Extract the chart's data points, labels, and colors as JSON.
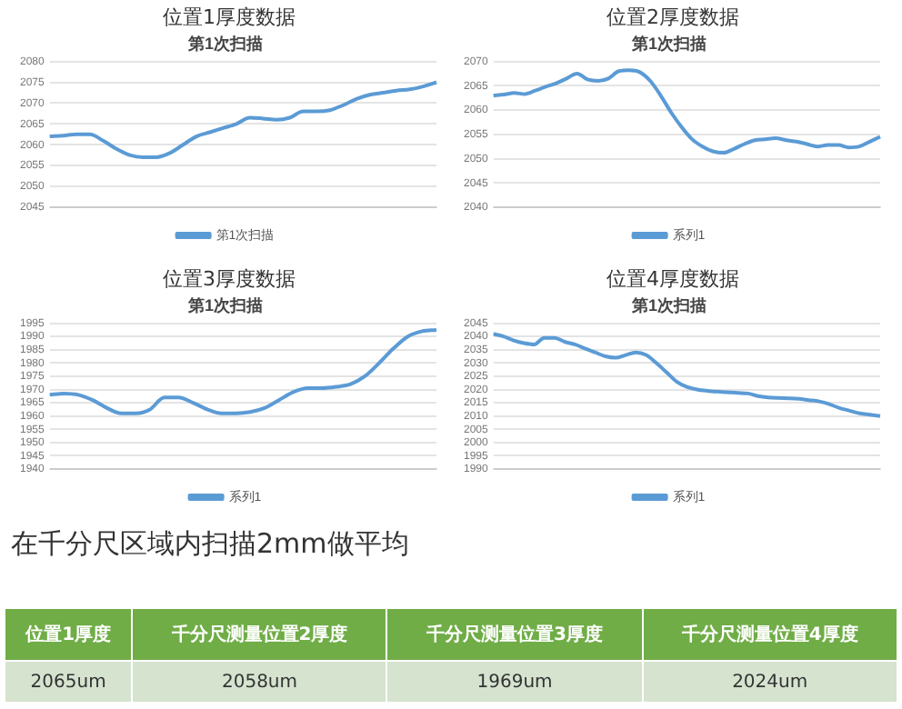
{
  "chart_data": [
    {
      "type": "line",
      "title": "位置1厚度数据",
      "subtitle": "第1次扫描",
      "categories": [
        null,
        null,
        null,
        null,
        null,
        null,
        null,
        null,
        null,
        null,
        null,
        null,
        null,
        null,
        null,
        null,
        null,
        null,
        null,
        null,
        null,
        null,
        null,
        null,
        null,
        null,
        null,
        null,
        null,
        null
      ],
      "series": [
        {
          "name": "第1次扫描",
          "color": "#5b9bd5",
          "values": [
            2062,
            2062.2,
            2062.5,
            2062.5,
            2061,
            2059,
            2057.5,
            2057,
            2057,
            2058,
            2060,
            2062,
            2063,
            2064,
            2065,
            2066.5,
            2066.3,
            2066,
            2066.5,
            2068,
            2068,
            2068.3,
            2069.5,
            2071,
            2072,
            2072.5,
            2073,
            2073.3,
            2074,
            2075
          ]
        }
      ],
      "ylim": [
        2045,
        2080
      ],
      "yticks": [
        2045,
        2050,
        2055,
        2060,
        2065,
        2070,
        2075,
        2080
      ],
      "grid": "y",
      "legend": "bottom",
      "tick_labels": "y",
      "marker": "none"
    },
    {
      "type": "line",
      "title": "位置2厚度数据",
      "subtitle": "第1次扫描",
      "categories": [
        null,
        null,
        null,
        null,
        null,
        null,
        null,
        null,
        null,
        null,
        null,
        null,
        null,
        null,
        null,
        null,
        null,
        null,
        null,
        null,
        null,
        null,
        null,
        null,
        null,
        null,
        null,
        null,
        null,
        null,
        null,
        null,
        null,
        null,
        null,
        null,
        null,
        null
      ],
      "series": [
        {
          "name": "系列1",
          "color": "#5b9bd5",
          "values": [
            2063,
            2063.2,
            2063.5,
            2063.3,
            2064,
            2064.8,
            2065.5,
            2066.5,
            2067.5,
            2066.3,
            2066,
            2066.5,
            2068,
            2068.2,
            2067.8,
            2066,
            2063,
            2059.5,
            2056.5,
            2054,
            2052.5,
            2051.5,
            2051.2,
            2052,
            2053,
            2053.8,
            2054,
            2054.2,
            2053.8,
            2053.5,
            2053,
            2052.5,
            2052.8,
            2052.8,
            2052.3,
            2052.5,
            2053.5,
            2054.5
          ]
        }
      ],
      "ylim": [
        2040,
        2070
      ],
      "yticks": [
        2040,
        2045,
        2050,
        2055,
        2060,
        2065,
        2070
      ],
      "grid": "y",
      "legend": "bottom",
      "tick_labels": "y",
      "marker": "none"
    },
    {
      "type": "line",
      "title": "位置3厚度数据",
      "subtitle": "第1次扫描",
      "categories": [
        null,
        null,
        null,
        null,
        null,
        null,
        null,
        null,
        null,
        null,
        null,
        null,
        null,
        null,
        null,
        null,
        null,
        null,
        null,
        null,
        null,
        null,
        null,
        null,
        null,
        null,
        null,
        null
      ],
      "series": [
        {
          "name": "系列1",
          "color": "#5b9bd5",
          "values": [
            1968,
            1968.5,
            1968,
            1966,
            1963,
            1961,
            1961,
            1962.5,
            1967,
            1967,
            1965,
            1962.5,
            1961,
            1961,
            1961.5,
            1963,
            1966,
            1969,
            1970.5,
            1970.5,
            1971,
            1972,
            1975,
            1980,
            1985.5,
            1990,
            1992,
            1992.5
          ]
        }
      ],
      "ylim": [
        1940,
        1995
      ],
      "yticks": [
        1940,
        1945,
        1950,
        1955,
        1960,
        1965,
        1970,
        1975,
        1980,
        1985,
        1990,
        1995
      ],
      "grid": "y",
      "legend": "bottom",
      "tick_labels": "y",
      "marker": "none"
    },
    {
      "type": "line",
      "title": "位置4厚度数据",
      "subtitle": "第1次扫描",
      "categories": [
        null,
        null,
        null,
        null,
        null,
        null,
        null,
        null,
        null,
        null,
        null,
        null,
        null,
        null,
        null,
        null,
        null,
        null,
        null,
        null,
        null,
        null,
        null,
        null,
        null,
        null,
        null,
        null,
        null,
        null,
        null,
        null,
        null,
        null,
        null,
        null,
        null,
        null,
        null
      ],
      "series": [
        {
          "name": "系列1",
          "color": "#5b9bd5",
          "values": [
            2041,
            2040,
            2038.5,
            2037.5,
            2037,
            2039.5,
            2039.5,
            2038,
            2037,
            2035.5,
            2034,
            2032.5,
            2032,
            2033,
            2034,
            2033,
            2030,
            2026.5,
            2023,
            2021,
            2020,
            2019.5,
            2019.2,
            2019,
            2018.7,
            2018.5,
            2017.5,
            2017,
            2016.8,
            2016.7,
            2016.5,
            2016,
            2015.5,
            2014.5,
            2013,
            2012,
            2011,
            2010.5,
            2010
          ]
        }
      ],
      "ylim": [
        1990,
        2045
      ],
      "yticks": [
        1990,
        1995,
        2000,
        2005,
        2010,
        2015,
        2020,
        2025,
        2030,
        2035,
        2040,
        2045
      ],
      "grid": "y",
      "legend": "bottom",
      "tick_labels": "y",
      "marker": "none"
    },
    {
      "type": "other",
      "title": "在千分尺区域内扫描2mm做平均",
      "categories": [
        "位置1厚度",
        "千分尺测量位置2厚度",
        "千分尺测量位置3厚度",
        "千分尺测量位置4厚度"
      ],
      "value_labels": [
        "2065um",
        "2058um",
        "1969um",
        "2024um"
      ]
    }
  ]
}
